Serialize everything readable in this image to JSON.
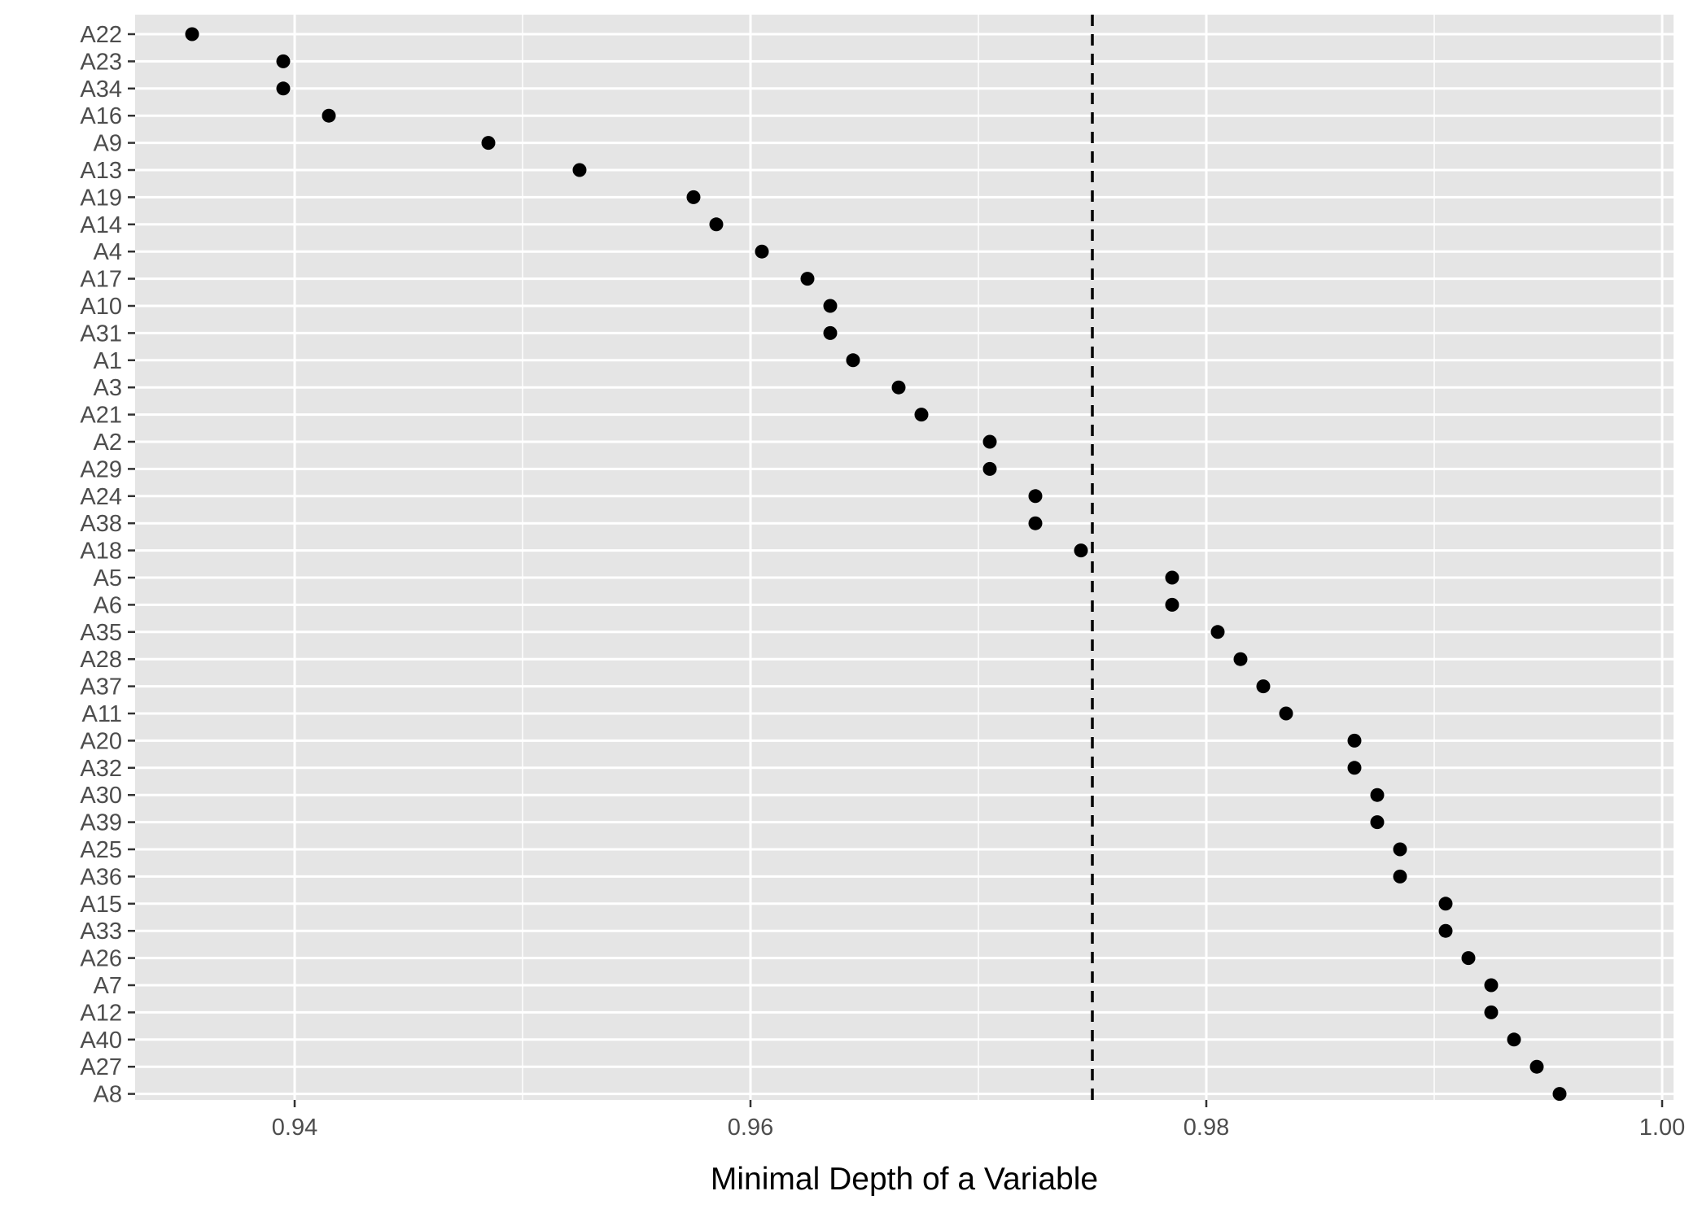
{
  "chart_data": {
    "type": "scatter",
    "xlabel": "Minimal Depth of a Variable",
    "ylabel": "",
    "xlim": [
      0.933,
      1.0005
    ],
    "x_ticks": [
      0.94,
      0.96,
      0.98,
      1.0
    ],
    "x_tick_labels": [
      "0.94",
      "0.96",
      "0.98",
      "1.00"
    ],
    "grid": true,
    "background_color": "#e5e5e5",
    "grid_color": "#ffffff",
    "point_color": "#000000",
    "reference_line": {
      "x": 0.975,
      "style": "dashed",
      "color": "#000000"
    },
    "points": [
      {
        "label": "A22",
        "x": 0.9355
      },
      {
        "label": "A23",
        "x": 0.9395
      },
      {
        "label": "A34",
        "x": 0.9395
      },
      {
        "label": "A16",
        "x": 0.9415
      },
      {
        "label": "A9",
        "x": 0.9485
      },
      {
        "label": "A13",
        "x": 0.9525
      },
      {
        "label": "A19",
        "x": 0.9575
      },
      {
        "label": "A14",
        "x": 0.9585
      },
      {
        "label": "A4",
        "x": 0.9605
      },
      {
        "label": "A17",
        "x": 0.9625
      },
      {
        "label": "A10",
        "x": 0.9635
      },
      {
        "label": "A31",
        "x": 0.9635
      },
      {
        "label": "A1",
        "x": 0.9645
      },
      {
        "label": "A3",
        "x": 0.9665
      },
      {
        "label": "A21",
        "x": 0.9675
      },
      {
        "label": "A2",
        "x": 0.9705
      },
      {
        "label": "A29",
        "x": 0.9705
      },
      {
        "label": "A24",
        "x": 0.9725
      },
      {
        "label": "A38",
        "x": 0.9725
      },
      {
        "label": "A18",
        "x": 0.9745
      },
      {
        "label": "A5",
        "x": 0.9785
      },
      {
        "label": "A6",
        "x": 0.9785
      },
      {
        "label": "A35",
        "x": 0.9805
      },
      {
        "label": "A28",
        "x": 0.9815
      },
      {
        "label": "A37",
        "x": 0.9825
      },
      {
        "label": "A11",
        "x": 0.9835
      },
      {
        "label": "A20",
        "x": 0.9865
      },
      {
        "label": "A32",
        "x": 0.9865
      },
      {
        "label": "A30",
        "x": 0.9875
      },
      {
        "label": "A39",
        "x": 0.9875
      },
      {
        "label": "A25",
        "x": 0.9885
      },
      {
        "label": "A36",
        "x": 0.9885
      },
      {
        "label": "A15",
        "x": 0.9905
      },
      {
        "label": "A33",
        "x": 0.9905
      },
      {
        "label": "A26",
        "x": 0.9915
      },
      {
        "label": "A7",
        "x": 0.9925
      },
      {
        "label": "A12",
        "x": 0.9925
      },
      {
        "label": "A40",
        "x": 0.9935
      },
      {
        "label": "A27",
        "x": 0.9945
      },
      {
        "label": "A8",
        "x": 0.9955
      }
    ]
  }
}
